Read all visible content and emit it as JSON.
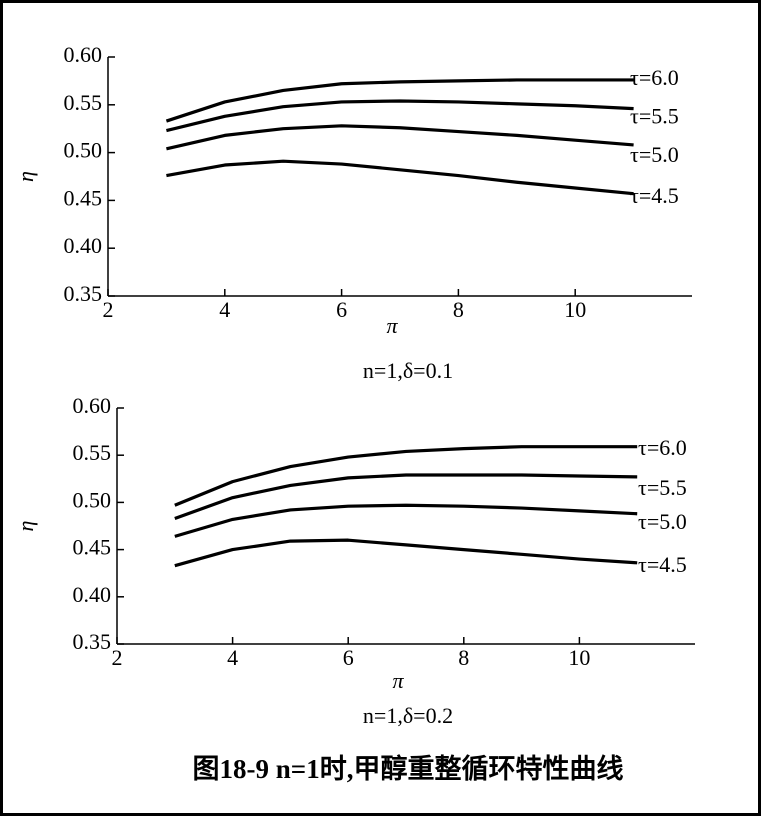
{
  "chart_data": [
    {
      "type": "line",
      "xlabel": "π",
      "ylabel": "η",
      "subtitle": "n=1,δ=0.1",
      "x": [
        3,
        4,
        5,
        6,
        7,
        8,
        9,
        10,
        11
      ],
      "series": [
        {
          "name": "τ=6.0",
          "color": "#000000",
          "values": [
            0.533,
            0.553,
            0.565,
            0.572,
            0.574,
            0.575,
            0.576,
            0.576,
            0.576
          ]
        },
        {
          "name": "τ=5.5",
          "color": "#000000",
          "values": [
            0.523,
            0.538,
            0.548,
            0.553,
            0.554,
            0.553,
            0.551,
            0.549,
            0.546
          ]
        },
        {
          "name": "τ=5.0",
          "color": "#000000",
          "values": [
            0.504,
            0.518,
            0.525,
            0.528,
            0.526,
            0.522,
            0.518,
            0.513,
            0.508
          ]
        },
        {
          "name": "τ=4.5",
          "color": "#000000",
          "values": [
            0.476,
            0.487,
            0.491,
            0.488,
            0.482,
            0.476,
            0.469,
            0.463,
            0.457
          ]
        }
      ],
      "xlim": [
        2,
        12
      ],
      "xticks": [
        2,
        4,
        6,
        8,
        10
      ],
      "ylim": [
        0.35,
        0.6
      ],
      "yticks": [
        {
          "value": 0.35,
          "label": "0.35"
        },
        {
          "value": 0.4,
          "label": "0.40"
        },
        {
          "value": 0.45,
          "label": "0.45"
        },
        {
          "value": 0.5,
          "label": "0.50"
        },
        {
          "value": 0.55,
          "label": "0.55"
        },
        {
          "value": 0.6,
          "label": "0.60"
        }
      ]
    },
    {
      "type": "line",
      "xlabel": "π",
      "ylabel": "η",
      "subtitle": "n=1,δ=0.2",
      "x": [
        3,
        4,
        5,
        6,
        7,
        8,
        9,
        10,
        11
      ],
      "series": [
        {
          "name": "τ=6.0",
          "color": "#000000",
          "values": [
            0.497,
            0.522,
            0.538,
            0.548,
            0.554,
            0.557,
            0.559,
            0.559,
            0.559
          ]
        },
        {
          "name": "τ=5.5",
          "color": "#000000",
          "values": [
            0.483,
            0.505,
            0.518,
            0.526,
            0.529,
            0.529,
            0.529,
            0.528,
            0.527
          ]
        },
        {
          "name": "τ=5.0",
          "color": "#000000",
          "values": [
            0.464,
            0.482,
            0.492,
            0.496,
            0.497,
            0.496,
            0.494,
            0.491,
            0.488
          ]
        },
        {
          "name": "τ=4.5",
          "color": "#000000",
          "values": [
            0.433,
            0.45,
            0.459,
            0.46,
            0.455,
            0.45,
            0.445,
            0.44,
            0.436
          ]
        }
      ],
      "xlim": [
        2,
        12
      ],
      "xticks": [
        2,
        4,
        6,
        8,
        10
      ],
      "ylim": [
        0.35,
        0.6
      ],
      "yticks": [
        {
          "value": 0.35,
          "label": "0.35"
        },
        {
          "value": 0.4,
          "label": "0.40"
        },
        {
          "value": 0.45,
          "label": "0.45"
        },
        {
          "value": 0.5,
          "label": "0.50"
        },
        {
          "value": 0.55,
          "label": "0.55"
        },
        {
          "value": 0.6,
          "label": "0.60"
        }
      ]
    }
  ],
  "caption": "图18-9   n=1时,甲醇重整循环特性曲线"
}
